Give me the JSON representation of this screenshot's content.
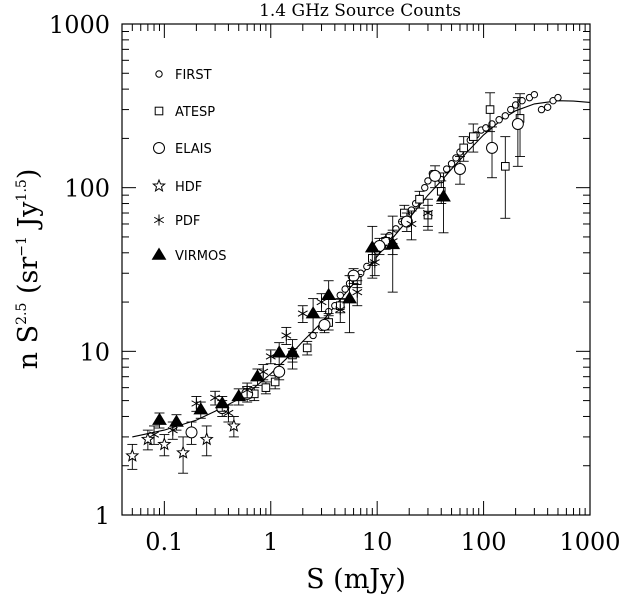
{
  "chart_data": {
    "type": "scatter",
    "title": "1.4 GHz Source Counts",
    "xlabel": "S (mJy)",
    "ylabel": {
      "prefix": "n S",
      "exp1": "2.5",
      "middle": " (sr",
      "exp2": "−1",
      "middle2": " Jy",
      "exp3": "1.5",
      "suffix": ")"
    },
    "x_scale": "log",
    "y_scale": "log",
    "xlim": [
      0.04,
      1000
    ],
    "ylim": [
      1,
      1000
    ],
    "x_ticks": [
      {
        "value": 0.1,
        "label": "0.1"
      },
      {
        "value": 1,
        "label": "1"
      },
      {
        "value": 10,
        "label": "10"
      },
      {
        "value": 100,
        "label": "100"
      },
      {
        "value": 1000,
        "label": "1000"
      }
    ],
    "y_ticks": [
      {
        "value": 1,
        "label": "1"
      },
      {
        "value": 10,
        "label": "10"
      },
      {
        "value": 100,
        "label": "100"
      },
      {
        "value": 1000,
        "label": "1000"
      }
    ],
    "legend_position": "top-left",
    "series": [
      {
        "name": "FIRST",
        "marker": "small-circle",
        "points": [
          [
            2.5,
            12.5
          ],
          [
            3.0,
            14.0
          ],
          [
            3.5,
            17.5
          ],
          [
            4.0,
            19.0
          ],
          [
            4.5,
            22.0
          ],
          [
            5.0,
            24.0
          ],
          [
            5.5,
            26.0
          ],
          [
            6.0,
            29.0
          ],
          [
            6.5,
            28.0
          ],
          [
            7.0,
            30.0
          ],
          [
            8.0,
            33.0
          ],
          [
            9.0,
            37.0
          ],
          [
            10.0,
            41.0
          ],
          [
            11.0,
            45.0
          ],
          [
            12.0,
            48.0
          ],
          [
            13.0,
            51.0
          ],
          [
            15.0,
            56.0
          ],
          [
            17.0,
            62.0
          ],
          [
            19.0,
            67.0
          ],
          [
            21.0,
            73.0
          ],
          [
            23.0,
            80.0
          ],
          [
            25.0,
            86.0
          ],
          [
            28.0,
            100.0
          ],
          [
            30.0,
            110.0
          ],
          [
            33.0,
            122.0
          ],
          [
            36.0,
            118.0
          ],
          [
            40.0,
            112.0
          ],
          [
            45.0,
            130.0
          ],
          [
            50.0,
            140.0
          ],
          [
            55.0,
            152.0
          ],
          [
            60.0,
            165.0
          ],
          [
            65.0,
            175.0
          ],
          [
            75.0,
            195.0
          ],
          [
            85.0,
            210.0
          ],
          [
            95.0,
            225.0
          ],
          [
            105.0,
            232.0
          ],
          [
            120.0,
            245.0
          ],
          [
            140.0,
            260.0
          ],
          [
            160.0,
            275.0
          ],
          [
            180.0,
            300.0
          ],
          [
            200.0,
            320.0
          ],
          [
            230.0,
            340.0
          ],
          [
            270.0,
            355.0
          ],
          [
            300.0,
            370.0
          ],
          [
            350.0,
            300.0
          ],
          [
            400.0,
            310.0
          ],
          [
            450.0,
            340.0
          ],
          [
            500.0,
            355.0
          ]
        ]
      },
      {
        "name": "ATESP",
        "marker": "square",
        "points": [
          [
            0.7,
            5.5,
            0.5
          ],
          [
            0.9,
            6.0,
            0.5
          ],
          [
            1.1,
            6.5,
            0.6
          ],
          [
            1.6,
            9.5,
            0.9
          ],
          [
            2.2,
            10.5,
            1.0
          ],
          [
            3.5,
            15.0,
            1.5
          ],
          [
            4.5,
            19.0,
            1.8
          ],
          [
            6.5,
            27.0,
            2.5
          ],
          [
            9.0,
            37.0,
            3.5
          ],
          [
            12.0,
            47.0,
            5.0
          ],
          [
            18.0,
            70.0,
            8.0
          ],
          [
            25.0,
            85.0,
            10.0
          ],
          [
            30.0,
            68.0,
            10.0
          ],
          [
            40.0,
            95.0,
            15.0
          ],
          [
            65.0,
            175.0,
            30.0
          ],
          [
            80.0,
            205.0,
            40.0
          ],
          [
            115.0,
            300.0,
            80.0
          ],
          [
            160.0,
            135.0,
            70.0
          ],
          [
            220.0,
            265.0,
            110.0
          ]
        ]
      },
      {
        "name": "ELAIS",
        "marker": "large-circle",
        "points": [
          [
            0.18,
            3.2,
            0.5
          ],
          [
            0.35,
            4.5,
            0.5
          ],
          [
            0.6,
            5.5,
            0.6
          ],
          [
            1.2,
            7.5,
            0.8
          ],
          [
            3.2,
            14.5,
            1.5
          ],
          [
            6.0,
            29.0,
            3.0
          ],
          [
            10.5,
            44.0,
            5.0
          ],
          [
            19.0,
            62.0,
            8.0
          ],
          [
            35.0,
            118.0,
            18.0
          ],
          [
            60.0,
            130.0,
            25.0
          ],
          [
            120.0,
            175.0,
            60.0
          ],
          [
            210.0,
            245.0,
            110.0
          ]
        ]
      },
      {
        "name": "HDF",
        "marker": "star",
        "points": [
          [
            0.05,
            2.3,
            0.4
          ],
          [
            0.07,
            2.9,
            0.4
          ],
          [
            0.1,
            2.7,
            0.4
          ],
          [
            0.15,
            2.4,
            0.6
          ],
          [
            0.25,
            2.9,
            0.6
          ],
          [
            0.45,
            3.5,
            0.5
          ]
        ]
      },
      {
        "name": "PDF",
        "marker": "asterisk",
        "points": [
          [
            0.08,
            3.1,
            0.4
          ],
          [
            0.12,
            3.3,
            0.4
          ],
          [
            0.2,
            4.8,
            0.5
          ],
          [
            0.3,
            5.2,
            0.5
          ],
          [
            0.4,
            4.2,
            0.5
          ],
          [
            0.6,
            5.8,
            0.6
          ],
          [
            0.85,
            7.5,
            0.8
          ],
          [
            1.0,
            9.3,
            0.9
          ],
          [
            1.4,
            12.5,
            1.5
          ],
          [
            2.0,
            17.0,
            2.0
          ],
          [
            3.0,
            20.0,
            2.5
          ],
          [
            4.5,
            18.0,
            3.0
          ],
          [
            6.5,
            23.0,
            4.0
          ],
          [
            9.5,
            35.0,
            6.0
          ],
          [
            14.0,
            47.0,
            8.0
          ],
          [
            21.0,
            60.0,
            12.0
          ],
          [
            30.0,
            70.0,
            15.0
          ]
        ]
      },
      {
        "name": "VIRMOS",
        "marker": "filled-triangle",
        "points": [
          [
            0.09,
            3.8,
            0.4
          ],
          [
            0.13,
            3.7,
            0.4
          ],
          [
            0.22,
            4.4,
            0.5
          ],
          [
            0.35,
            4.8,
            0.5
          ],
          [
            0.5,
            5.3,
            0.6
          ],
          [
            0.75,
            7.0,
            0.8
          ],
          [
            1.2,
            9.8,
            1.5
          ],
          [
            1.6,
            9.8,
            2.0
          ],
          [
            2.5,
            17.0,
            4.0
          ],
          [
            3.5,
            22.0,
            5.0
          ],
          [
            5.5,
            21.0,
            8.0
          ],
          [
            9.0,
            43.0,
            15.0
          ],
          [
            14.0,
            45.0,
            22.0
          ],
          [
            42.0,
            88.0,
            35.0
          ]
        ]
      }
    ],
    "model_curve": [
      [
        0.05,
        3.0
      ],
      [
        0.1,
        3.3
      ],
      [
        0.2,
        3.8
      ],
      [
        0.3,
        4.3
      ],
      [
        0.5,
        5.1
      ],
      [
        0.7,
        6.0
      ],
      [
        1.0,
        7.3
      ],
      [
        1.5,
        9.4
      ],
      [
        2.0,
        11.5
      ],
      [
        3.0,
        15.0
      ],
      [
        5.0,
        22.5
      ],
      [
        7.0,
        29.0
      ],
      [
        10.0,
        38.0
      ],
      [
        15.0,
        52.0
      ],
      [
        20.0,
        65.0
      ],
      [
        30.0,
        90.0
      ],
      [
        40.0,
        110.0
      ],
      [
        50.0,
        130.0
      ],
      [
        70.0,
        165.0
      ],
      [
        100.0,
        210.0
      ],
      [
        150.0,
        262.0
      ],
      [
        200.0,
        295.0
      ],
      [
        300.0,
        325.0
      ],
      [
        500.0,
        340.0
      ],
      [
        700.0,
        338.0
      ],
      [
        1000.0,
        332.0
      ]
    ]
  }
}
